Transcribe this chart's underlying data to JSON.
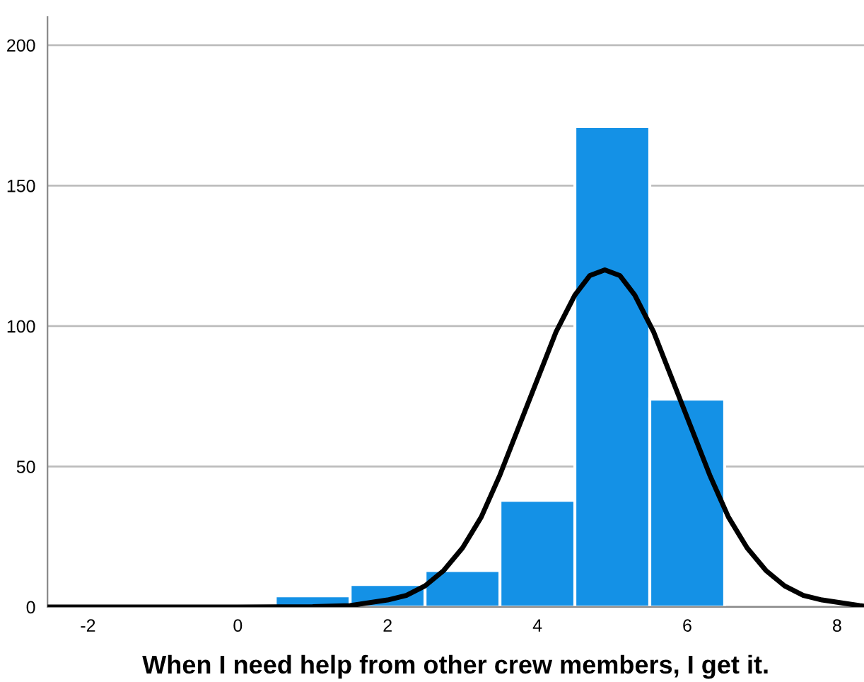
{
  "chart_data": {
    "type": "histogram",
    "xlabel": "When I need help from other crew members, I get it.",
    "bins": [
      -0.5,
      0.5,
      1.5,
      2.5,
      3.5,
      4.5,
      5.5,
      6.5
    ],
    "values": [
      null,
      4,
      8,
      13,
      38,
      171,
      74
    ],
    "color": "#1491e6",
    "series": [
      {
        "type": "line",
        "color": "#000000",
        "x": [
          -2.54,
          0,
          1,
          1.5,
          2,
          2.25,
          2.5,
          2.75,
          3,
          3.25,
          3.5,
          3.75,
          4,
          4.25,
          4.5,
          4.7,
          4.9,
          5.1,
          5.3,
          5.55,
          5.8,
          6.05,
          6.3,
          6.55,
          6.8,
          7.05,
          7.3,
          7.55,
          7.8,
          8.3,
          8.36
        ],
        "values": [
          0,
          0,
          0.1,
          0.5,
          2.5,
          4.1,
          7.5,
          13,
          21,
          32,
          47,
          64,
          81,
          98,
          111,
          118,
          120,
          118,
          111,
          98,
          81,
          64,
          47,
          32,
          21,
          13,
          7.5,
          4.1,
          2.5,
          0.5,
          0.3
        ]
      }
    ],
    "xlim": [
      -2.54,
      8.36
    ],
    "ylim": [
      0,
      210
    ],
    "xticks": [
      -2,
      0,
      2,
      4,
      6,
      8
    ],
    "yticks": [
      0,
      50,
      100,
      150,
      200
    ],
    "grid": "y",
    "legend": false
  }
}
